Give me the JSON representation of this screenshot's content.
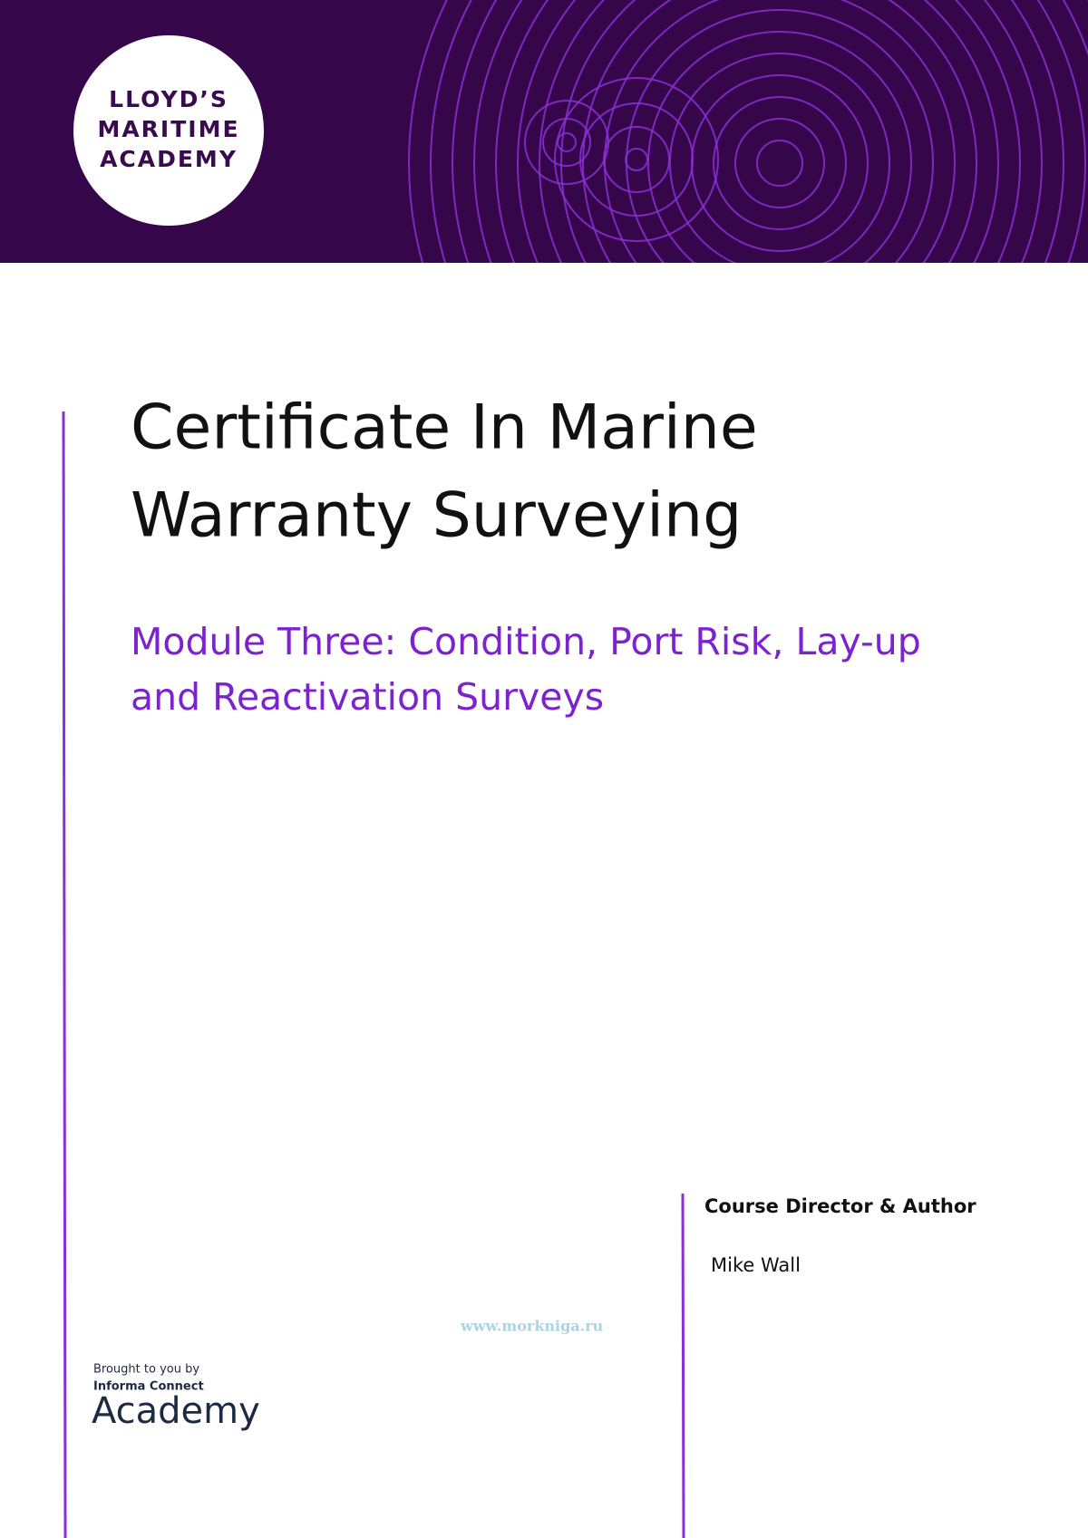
{
  "header": {
    "logo": [
      "LLOYD’S",
      "MARITIME",
      "ACADEMY"
    ]
  },
  "title": [
    "Certificate In Marine",
    "Warranty Surveying"
  ],
  "subtitle": [
    "Module Three: Condition, Port Risk, Lay-up",
    "and Reactivation Surveys"
  ],
  "author": {
    "role": "Course Director & Author",
    "name": "Mike Wall"
  },
  "watermark": "www.morkniga.ru",
  "sponsor": {
    "lead": "Brought to you by",
    "brand": "Informa Connect",
    "product": "Academy"
  }
}
